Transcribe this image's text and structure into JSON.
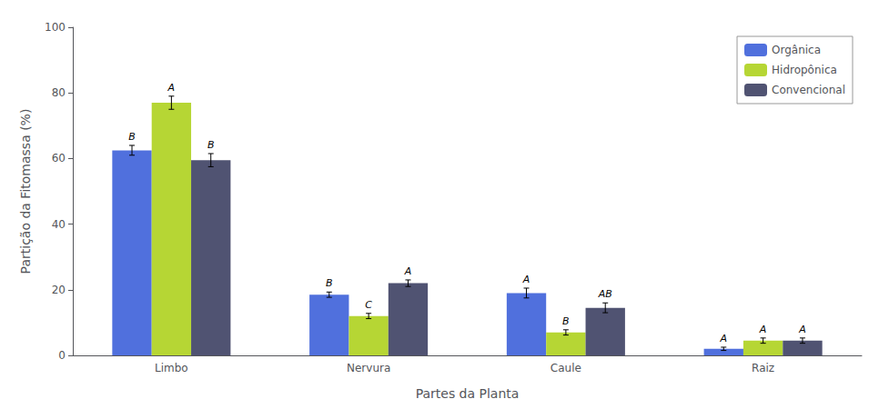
{
  "chart_data": {
    "type": "bar",
    "xlabel": "Partes da Planta",
    "ylabel": "Partição da Fitomassa (%)",
    "categories": [
      "Limbo",
      "Nervura",
      "Caule",
      "Raiz"
    ],
    "series": [
      {
        "name": "Orgânica",
        "values": [
          62.5,
          18.5,
          19.0,
          2.0
        ],
        "errors": [
          1.5,
          0.8,
          1.5,
          0.5
        ],
        "significance": [
          "B",
          "B",
          "A",
          "A"
        ]
      },
      {
        "name": "Hidropônica",
        "values": [
          77.0,
          12.0,
          7.0,
          4.5
        ],
        "errors": [
          2.0,
          0.8,
          0.8,
          0.8
        ],
        "significance": [
          "A",
          "C",
          "B",
          "A"
        ]
      },
      {
        "name": "Convencional",
        "values": [
          59.5,
          22.0,
          14.5,
          4.5
        ],
        "errors": [
          2.0,
          1.0,
          1.5,
          0.8
        ],
        "significance": [
          "B",
          "A",
          "AB",
          "A"
        ]
      }
    ],
    "ylim": [
      0,
      100
    ],
    "yticks": [
      0,
      20,
      40,
      60,
      80,
      100
    ],
    "grid": false,
    "legend": "upper right"
  }
}
